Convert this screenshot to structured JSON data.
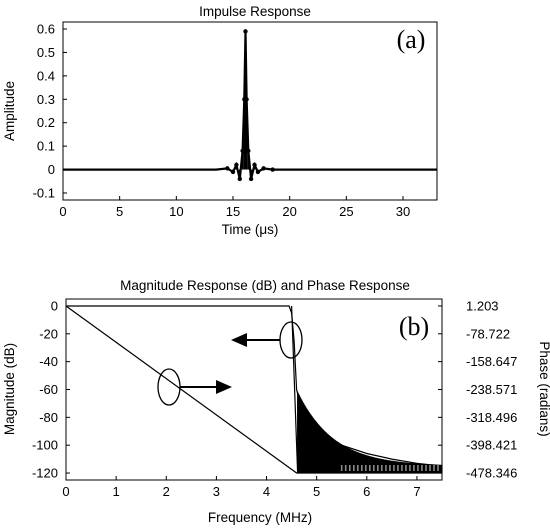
{
  "chart_data": [
    {
      "panel_label": "(a)",
      "type": "line",
      "title": "Impulse Response",
      "xlabel": "Time (μs)",
      "ylabel": "Amplitude",
      "xlim": [
        0,
        33
      ],
      "ylim": [
        -0.13,
        0.63
      ],
      "x_ticks": [
        "0",
        "5",
        "10",
        "15",
        "20",
        "25",
        "30"
      ],
      "y_ticks": [
        "-0.1",
        "0",
        "0.1",
        "0.2",
        "0.3",
        "0.4",
        "0.5",
        "0.6"
      ],
      "series": [
        {
          "x": [
            0,
            13.5,
            14.5,
            15.0,
            15.3,
            15.6,
            15.85,
            16.0,
            16.1,
            16.2,
            16.35,
            16.6,
            16.9,
            17.2,
            17.7,
            18.5,
            33
          ],
          "y": [
            0,
            0,
            0.005,
            -0.01,
            0.02,
            -0.04,
            0.08,
            0.3,
            0.59,
            0.3,
            0.08,
            -0.04,
            0.02,
            -0.01,
            0.005,
            0,
            0
          ]
        }
      ],
      "grid": false
    },
    {
      "panel_label": "(b)",
      "type": "line",
      "title": "Magnitude Response (dB) and Phase Response",
      "xlabel": "Frequency (MHz)",
      "ylabel": "Magnitude (dB)",
      "ylabel_right": "Phase (radians)",
      "xlim": [
        0,
        7.5
      ],
      "ylim": [
        -125,
        5
      ],
      "x_ticks": [
        "0",
        "1",
        "2",
        "3",
        "4",
        "5",
        "6",
        "7"
      ],
      "y_ticks": [
        "0",
        "-20",
        "-40",
        "-60",
        "-80",
        "-100",
        "-120"
      ],
      "y_ticks_right": [
        "1.203",
        "-78.722",
        "-158.647",
        "-238.571",
        "-318.496",
        "-398.421",
        "-478.346"
      ],
      "series": [
        {
          "axis": "left",
          "x": [
            0,
            4.45,
            4.5,
            4.55,
            4.6,
            4.7,
            5.0,
            5.5,
            6.0,
            6.5,
            7.0,
            7.5
          ],
          "y": [
            0,
            0,
            -5,
            -25,
            -60,
            -75,
            -90,
            -100,
            -106,
            -110,
            -113,
            -115
          ]
        },
        {
          "axis": "right",
          "x": [
            0,
            4.6,
            7.5
          ],
          "y": [
            1.203,
            -478.346,
            -478.346
          ]
        }
      ],
      "grid": false
    }
  ]
}
